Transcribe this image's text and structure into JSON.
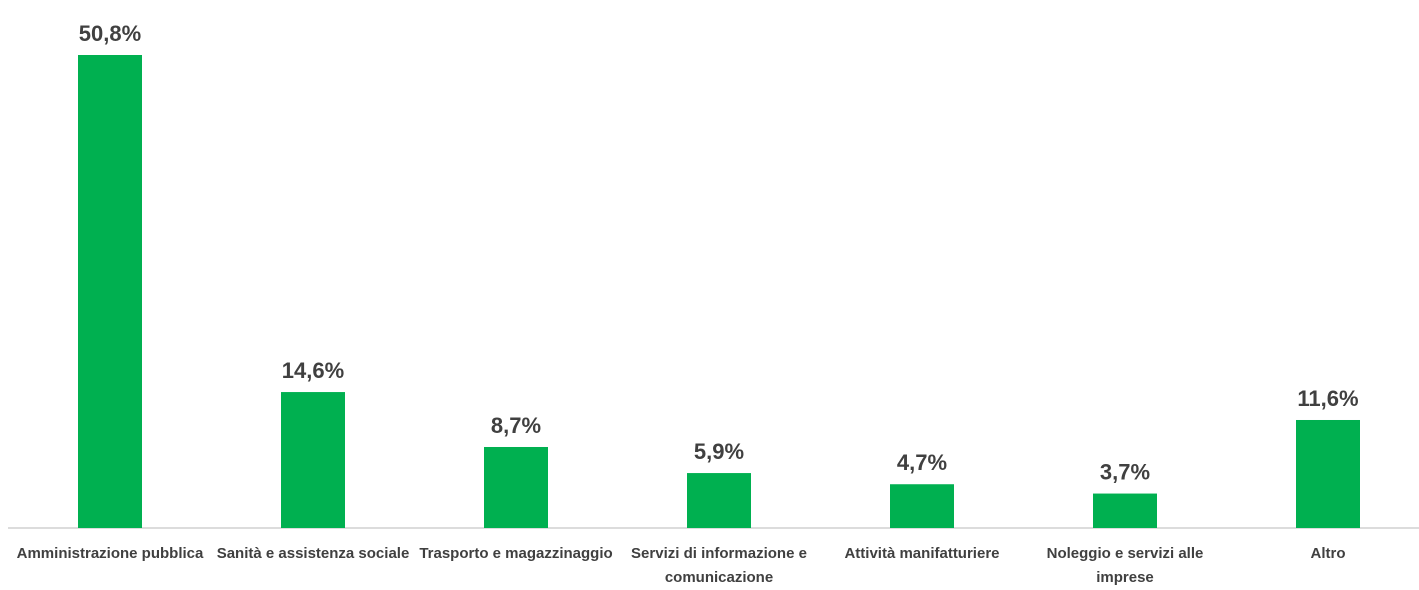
{
  "chart_data": {
    "type": "bar",
    "categories": [
      "Amministrazione pubblica",
      "Sanità e assistenza sociale",
      "Trasporto e magazzinaggio",
      "Servizi di informazione e comunicazione",
      "Attività manifatturiere",
      "Noleggio e servizi alle imprese",
      "Altro"
    ],
    "values": [
      50.8,
      14.6,
      8.7,
      5.9,
      4.7,
      3.7,
      11.6
    ],
    "value_labels": [
      "50,8%",
      "14,6%",
      "8,7%",
      "5,9%",
      "4,7%",
      "3,7%",
      "11,6%"
    ],
    "color": "#00b050"
  }
}
